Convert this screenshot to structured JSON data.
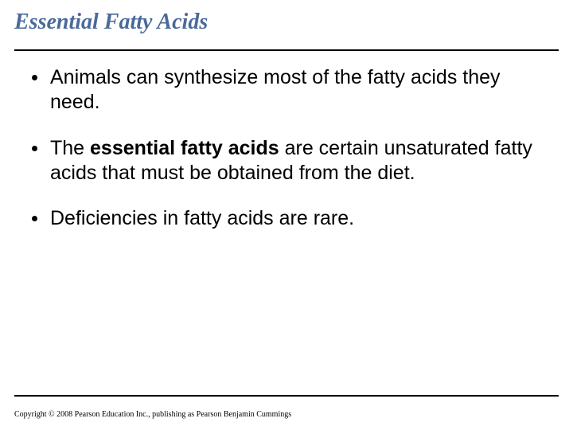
{
  "title": "Essential Fatty Acids",
  "title_color": "#4a6a9a",
  "title_fontsize": 28,
  "rule_color": "#000000",
  "background_color": "#ffffff",
  "bullets": [
    {
      "pre": "Animals can synthesize most of the fatty acids they need.",
      "bold": "",
      "post": ""
    },
    {
      "pre": "The ",
      "bold": "essential fatty acids",
      "post": " are certain unsaturated fatty acids that must be obtained from the diet."
    },
    {
      "pre": "Deficiencies in fatty acids are rare.",
      "bold": "",
      "post": ""
    }
  ],
  "bullet_fontsize": 25,
  "copyright": "Copyright © 2008 Pearson Education Inc., publishing as Pearson Benjamin Cummings"
}
